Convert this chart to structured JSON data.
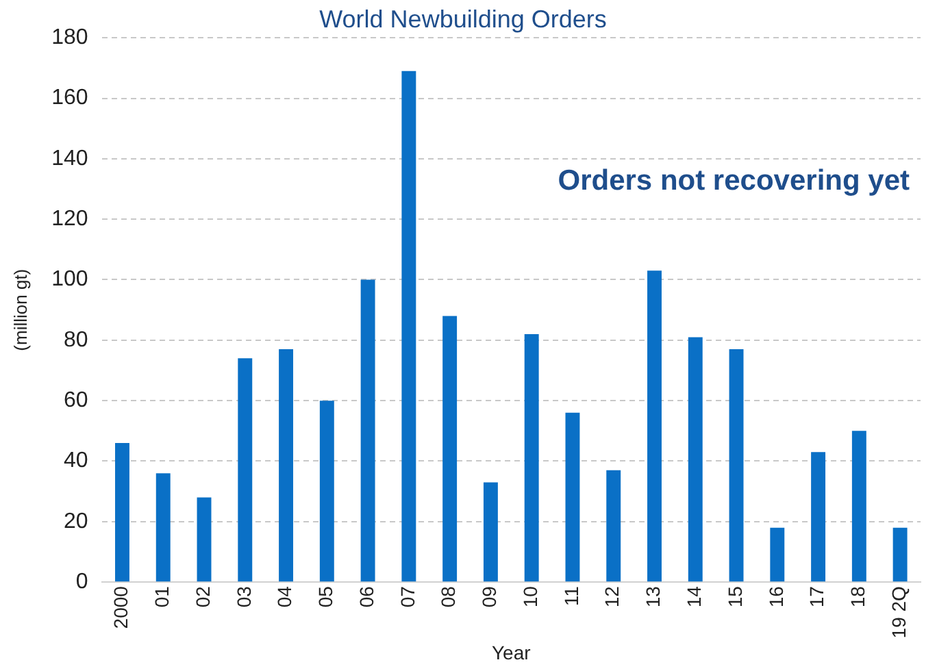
{
  "chart_data": {
    "type": "bar",
    "title": "World Newbuilding Orders",
    "xlabel": "Year",
    "ylabel": "(million gt)",
    "categories": [
      "2000",
      "01",
      "02",
      "03",
      "04",
      "05",
      "06",
      "07",
      "08",
      "09",
      "10",
      "11",
      "12",
      "13",
      "14",
      "15",
      "16",
      "17",
      "18",
      "19 2Q"
    ],
    "values": [
      46,
      36,
      28,
      74,
      77,
      60,
      100,
      169,
      88,
      33,
      82,
      56,
      37,
      103,
      81,
      77,
      18,
      43,
      50,
      18
    ],
    "color": "#0a70c6",
    "ylim": [
      0,
      180
    ],
    "yticks": [
      0,
      20,
      40,
      60,
      80,
      100,
      120,
      140,
      160,
      180
    ],
    "grid": "y",
    "legend": false,
    "annotations": [
      "Orders not recovering yet"
    ]
  }
}
